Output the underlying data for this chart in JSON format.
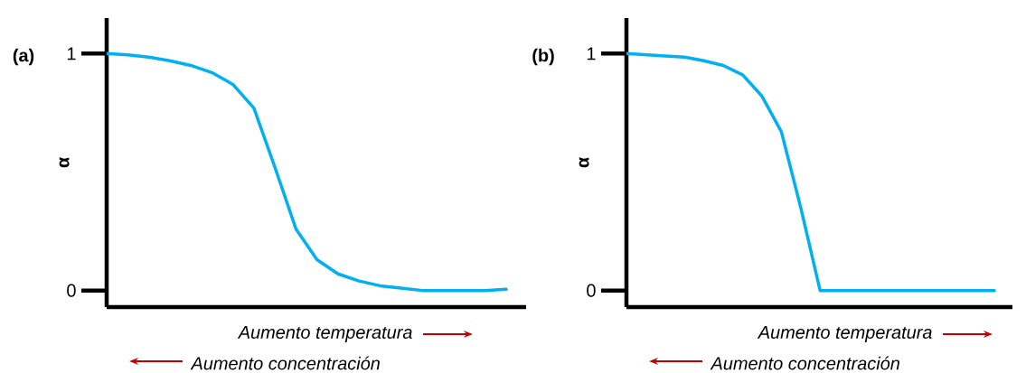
{
  "chart_data": [
    {
      "type": "line",
      "categories": [
        null,
        null,
        null,
        null,
        null,
        null,
        null,
        null,
        null,
        null,
        null,
        null,
        null,
        null,
        null,
        null,
        null,
        null,
        null,
        null
      ],
      "values": [
        1.0,
        0.995,
        0.985,
        0.97,
        0.95,
        0.92,
        0.87,
        0.77,
        0.52,
        0.26,
        0.13,
        0.07,
        0.04,
        0.02,
        0.01,
        0.0,
        0.0,
        0.0,
        0.0,
        0.005
      ],
      "color": "#00b0f0",
      "ylim": [
        -0.07,
        1.15
      ],
      "yticks": [
        0,
        1
      ],
      "ylabel": "α",
      "tick_labels": "y",
      "annotations": [
        "(a)",
        "Aumento temperatura",
        "Aumento concentración"
      ]
    },
    {
      "type": "line",
      "categories": [
        null,
        null,
        null,
        null,
        null,
        null,
        null,
        null,
        null,
        null,
        null,
        null,
        null,
        null,
        null,
        null,
        null,
        null,
        null,
        null
      ],
      "values": [
        1.0,
        0.995,
        0.99,
        0.985,
        0.97,
        0.95,
        0.91,
        0.82,
        0.67,
        0.35,
        0.0,
        0.0,
        0.0,
        0.0,
        0.0,
        0.0,
        0.0,
        0.0,
        0.0,
        0.0
      ],
      "color": "#00b0f0",
      "ylim": [
        -0.07,
        1.15
      ],
      "yticks": [
        0,
        1
      ],
      "ylabel": "α",
      "tick_labels": "y",
      "annotations": [
        "(b)",
        "Aumento temperatura",
        "Aumento concentración"
      ]
    }
  ]
}
